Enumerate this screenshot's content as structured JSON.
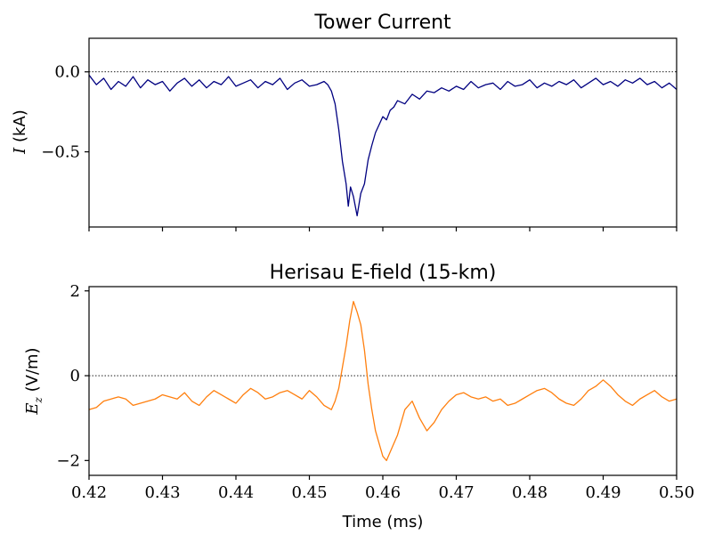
{
  "chart_data": [
    {
      "type": "line",
      "title": "Tower Current",
      "ylabel_symbol": "I",
      "ylabel_unit": " (kA)",
      "xlim": [
        0.42,
        0.5
      ],
      "ylim": [
        -0.97,
        0.21
      ],
      "yticks": [
        0.0,
        -0.5
      ],
      "ytick_labels": [
        "0.0",
        "−0.5"
      ],
      "reference_line_y": 0.0,
      "color": "#000080",
      "series": [
        {
          "x": [
            0.42,
            0.421,
            0.422,
            0.423,
            0.424,
            0.425,
            0.426,
            0.427,
            0.428,
            0.429,
            0.43,
            0.431,
            0.432,
            0.433,
            0.434,
            0.435,
            0.436,
            0.437,
            0.438,
            0.439,
            0.44,
            0.441,
            0.442,
            0.443,
            0.444,
            0.445,
            0.446,
            0.447,
            0.448,
            0.449,
            0.45,
            0.451,
            0.452,
            0.4525,
            0.453,
            0.4535,
            0.454,
            0.4545,
            0.455,
            0.4553,
            0.4556,
            0.456,
            0.4565,
            0.457,
            0.4575,
            0.458,
            0.4585,
            0.459,
            0.4595,
            0.46,
            0.4605,
            0.461,
            0.4615,
            0.462,
            0.463,
            0.464,
            0.465,
            0.466,
            0.467,
            0.468,
            0.469,
            0.47,
            0.471,
            0.472,
            0.473,
            0.474,
            0.475,
            0.476,
            0.477,
            0.478,
            0.479,
            0.48,
            0.481,
            0.482,
            0.483,
            0.484,
            0.485,
            0.486,
            0.487,
            0.488,
            0.489,
            0.49,
            0.491,
            0.492,
            0.493,
            0.494,
            0.495,
            0.496,
            0.497,
            0.498,
            0.499,
            0.5
          ],
          "y": [
            -0.02,
            -0.08,
            -0.04,
            -0.11,
            -0.06,
            -0.09,
            -0.03,
            -0.1,
            -0.05,
            -0.08,
            -0.06,
            -0.12,
            -0.07,
            -0.04,
            -0.09,
            -0.05,
            -0.1,
            -0.06,
            -0.08,
            -0.03,
            -0.09,
            -0.07,
            -0.05,
            -0.1,
            -0.06,
            -0.08,
            -0.04,
            -0.11,
            -0.07,
            -0.05,
            -0.09,
            -0.08,
            -0.06,
            -0.08,
            -0.12,
            -0.2,
            -0.36,
            -0.56,
            -0.7,
            -0.84,
            -0.72,
            -0.78,
            -0.9,
            -0.76,
            -0.7,
            -0.55,
            -0.46,
            -0.38,
            -0.33,
            -0.28,
            -0.3,
            -0.24,
            -0.22,
            -0.18,
            -0.2,
            -0.14,
            -0.17,
            -0.12,
            -0.13,
            -0.1,
            -0.12,
            -0.09,
            -0.11,
            -0.06,
            -0.1,
            -0.08,
            -0.07,
            -0.11,
            -0.06,
            -0.09,
            -0.08,
            -0.05,
            -0.1,
            -0.07,
            -0.09,
            -0.06,
            -0.08,
            -0.05,
            -0.1,
            -0.07,
            -0.04,
            -0.08,
            -0.06,
            -0.09,
            -0.05,
            -0.07,
            -0.04,
            -0.08,
            -0.06,
            -0.1,
            -0.07,
            -0.11
          ]
        }
      ]
    },
    {
      "type": "line",
      "title": "Herisau E-field (15-km)",
      "ylabel_symbol": "E",
      "ylabel_subscript": "z",
      "ylabel_unit": " (V/m)",
      "xlabel": "Time (ms)",
      "xlim": [
        0.42,
        0.5
      ],
      "ylim": [
        -2.35,
        2.1
      ],
      "yticks": [
        2,
        0,
        -2
      ],
      "ytick_labels": [
        "2",
        "0",
        "−2"
      ],
      "xticks": [
        0.42,
        0.43,
        0.44,
        0.45,
        0.46,
        0.47,
        0.48,
        0.49,
        0.5
      ],
      "xtick_labels": [
        "0.42",
        "0.43",
        "0.44",
        "0.45",
        "0.46",
        "0.47",
        "0.48",
        "0.49",
        "0.50"
      ],
      "reference_line_y": 0.0,
      "color": "#ff7f0e",
      "series": [
        {
          "x": [
            0.42,
            0.421,
            0.422,
            0.423,
            0.424,
            0.425,
            0.426,
            0.427,
            0.428,
            0.429,
            0.43,
            0.431,
            0.432,
            0.433,
            0.434,
            0.435,
            0.436,
            0.437,
            0.438,
            0.439,
            0.44,
            0.441,
            0.442,
            0.443,
            0.444,
            0.445,
            0.446,
            0.447,
            0.448,
            0.449,
            0.45,
            0.451,
            0.452,
            0.453,
            0.4535,
            0.454,
            0.4545,
            0.455,
            0.4555,
            0.456,
            0.4565,
            0.457,
            0.4575,
            0.458,
            0.4585,
            0.459,
            0.4595,
            0.46,
            0.4605,
            0.461,
            0.462,
            0.463,
            0.464,
            0.465,
            0.466,
            0.467,
            0.468,
            0.469,
            0.47,
            0.471,
            0.472,
            0.473,
            0.474,
            0.475,
            0.476,
            0.477,
            0.478,
            0.479,
            0.48,
            0.481,
            0.482,
            0.483,
            0.484,
            0.485,
            0.486,
            0.487,
            0.488,
            0.489,
            0.49,
            0.491,
            0.492,
            0.493,
            0.494,
            0.495,
            0.496,
            0.497,
            0.498,
            0.499,
            0.5
          ],
          "y": [
            -0.8,
            -0.75,
            -0.6,
            -0.55,
            -0.5,
            -0.55,
            -0.7,
            -0.65,
            -0.6,
            -0.55,
            -0.45,
            -0.5,
            -0.55,
            -0.4,
            -0.6,
            -0.7,
            -0.5,
            -0.35,
            -0.45,
            -0.55,
            -0.65,
            -0.45,
            -0.3,
            -0.4,
            -0.55,
            -0.5,
            -0.4,
            -0.35,
            -0.45,
            -0.55,
            -0.35,
            -0.5,
            -0.7,
            -0.8,
            -0.6,
            -0.3,
            0.2,
            0.7,
            1.3,
            1.75,
            1.5,
            1.2,
            0.6,
            -0.2,
            -0.8,
            -1.3,
            -1.6,
            -1.9,
            -2.0,
            -1.8,
            -1.4,
            -0.8,
            -0.6,
            -1.0,
            -1.3,
            -1.1,
            -0.8,
            -0.6,
            -0.45,
            -0.4,
            -0.5,
            -0.55,
            -0.5,
            -0.6,
            -0.55,
            -0.7,
            -0.65,
            -0.55,
            -0.45,
            -0.35,
            -0.3,
            -0.4,
            -0.55,
            -0.65,
            -0.7,
            -0.55,
            -0.35,
            -0.25,
            -0.1,
            -0.25,
            -0.45,
            -0.6,
            -0.7,
            -0.55,
            -0.45,
            -0.35,
            -0.5,
            -0.6,
            -0.55
          ]
        }
      ]
    }
  ]
}
